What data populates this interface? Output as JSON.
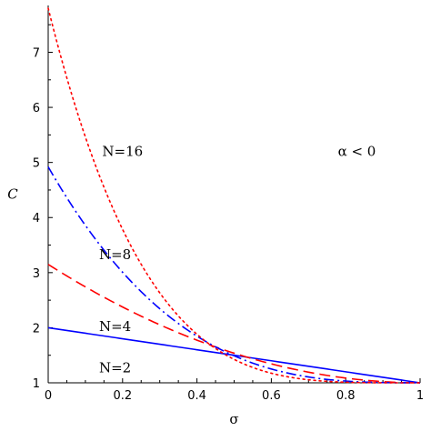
{
  "chart_data": {
    "type": "line",
    "xlabel": "σ",
    "ylabel": "C",
    "xlim": [
      0,
      1
    ],
    "ylim": [
      1,
      7.85
    ],
    "grid": false,
    "x_ticks": [
      "0",
      "0.2",
      "0.4",
      "0.6",
      "0.8",
      "1"
    ],
    "y_ticks": [
      "1",
      "2",
      "3",
      "4",
      "5",
      "6",
      "7"
    ],
    "series": [
      {
        "label": "N=2",
        "color": "#0000ff",
        "style": "solid",
        "exponent": 1,
        "y0": 2.0
      },
      {
        "label": "N=4",
        "color": "#ff0000",
        "style": "dash",
        "exponent": 2,
        "y0": 3.15
      },
      {
        "label": "N=8",
        "color": "#0000ff",
        "style": "dashdot",
        "exponent": 3,
        "y0": 4.92
      },
      {
        "label": "N=16",
        "color": "#ff0000",
        "style": "dot",
        "exponent": 4,
        "y0": 7.8
      }
    ],
    "annotations": [
      {
        "text": "N=2",
        "x": 0.18,
        "y": 1.27
      },
      {
        "text": "N=4",
        "x": 0.18,
        "y": 2.02
      },
      {
        "text": "N=8",
        "x": 0.18,
        "y": 3.33
      },
      {
        "text": "N=16",
        "x": 0.2,
        "y": 5.2
      },
      {
        "text": "α < 0",
        "x": 0.83,
        "y": 5.2
      }
    ]
  }
}
